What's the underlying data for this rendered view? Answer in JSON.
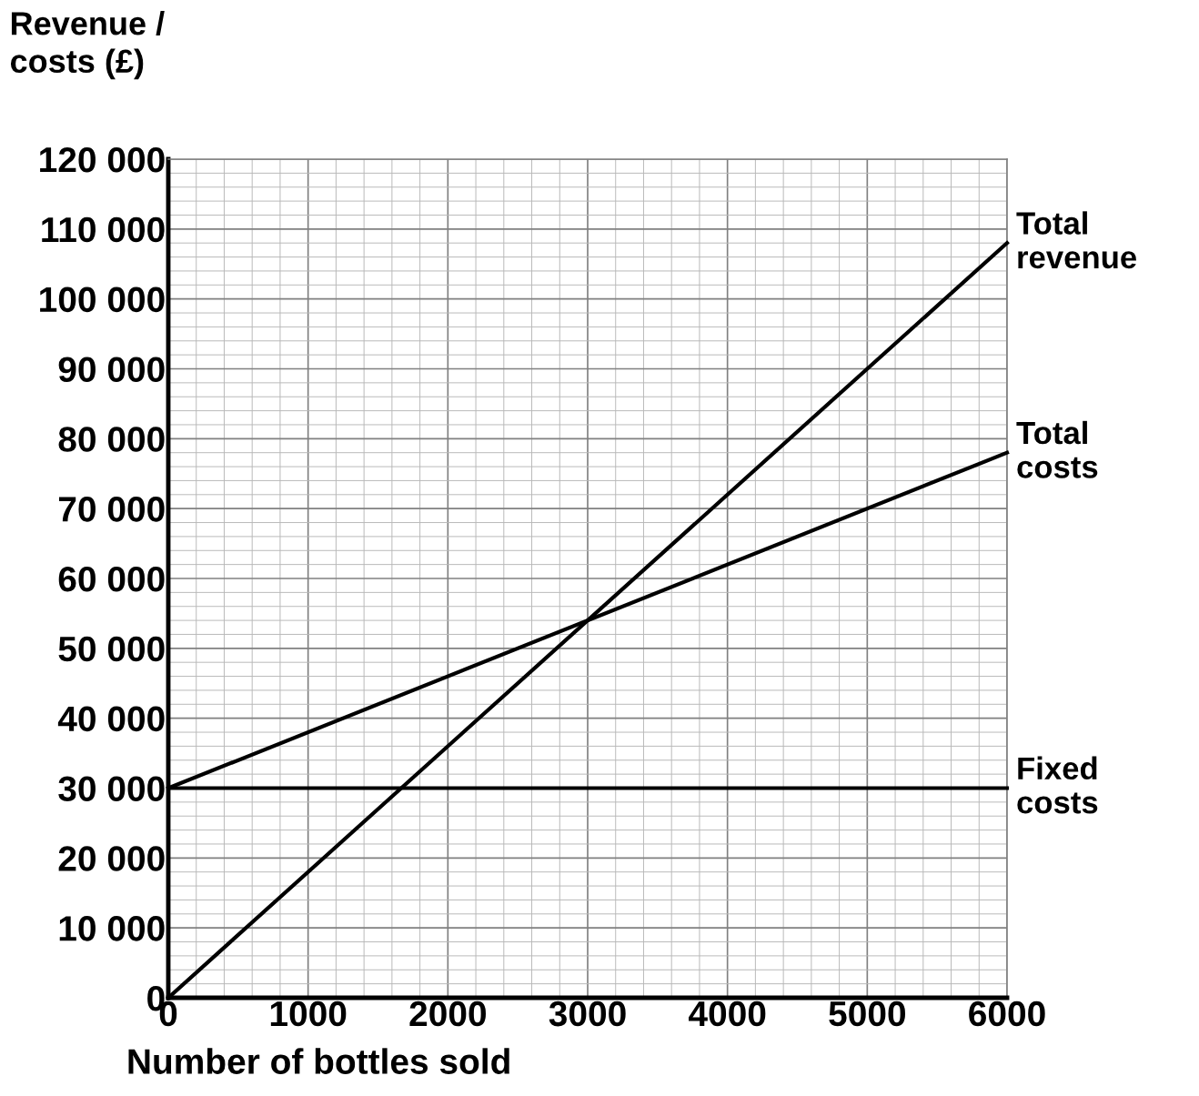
{
  "chart_data": {
    "type": "line",
    "xlabel": "Number of bottles sold",
    "ylabel": "Revenue / costs (£)",
    "xlim": [
      0,
      6000
    ],
    "ylim": [
      0,
      120000
    ],
    "xticks": [
      0,
      1000,
      2000,
      3000,
      4000,
      5000,
      6000
    ],
    "yticks": [
      {
        "value": 0,
        "label": "0"
      },
      {
        "value": 10000,
        "label": "10 000"
      },
      {
        "value": 20000,
        "label": "20 000"
      },
      {
        "value": 30000,
        "label": "30 000"
      },
      {
        "value": 40000,
        "label": "40 000"
      },
      {
        "value": 50000,
        "label": "50 000"
      },
      {
        "value": 60000,
        "label": "60 000"
      },
      {
        "value": 70000,
        "label": "70 000"
      },
      {
        "value": 80000,
        "label": "80 000"
      },
      {
        "value": 90000,
        "label": "90 000"
      },
      {
        "value": 100000,
        "label": "100 000"
      },
      {
        "value": 110000,
        "label": "110 000"
      },
      {
        "value": 120000,
        "label": "120 000"
      }
    ],
    "grid": true,
    "marker": "none",
    "line_style": "solid",
    "x": [
      0,
      6000
    ],
    "series": [
      {
        "name": "Total revenue",
        "color": "#000000",
        "values": [
          0,
          108000
        ]
      },
      {
        "name": "Total costs",
        "color": "#000000",
        "values": [
          30000,
          78000
        ]
      },
      {
        "name": "Fixed costs",
        "color": "#000000",
        "values": [
          30000,
          30000
        ]
      }
    ]
  }
}
